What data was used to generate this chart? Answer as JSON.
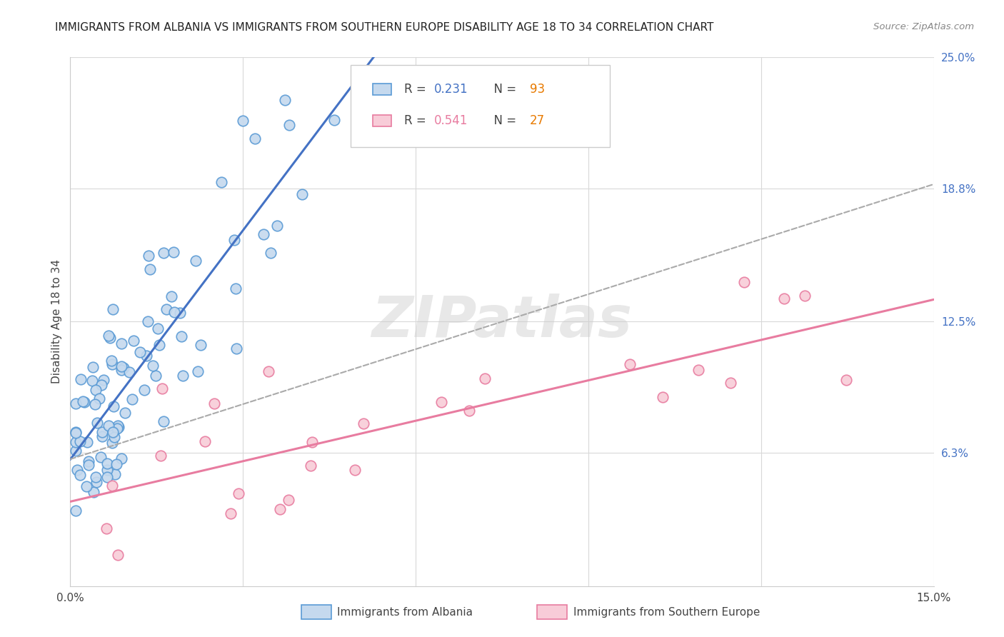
{
  "title": "IMMIGRANTS FROM ALBANIA VS IMMIGRANTS FROM SOUTHERN EUROPE DISABILITY AGE 18 TO 34 CORRELATION CHART",
  "source": "Source: ZipAtlas.com",
  "ylabel_label": "Disability Age 18 to 34",
  "xlim": [
    0.0,
    0.15
  ],
  "ylim": [
    0.0,
    0.25
  ],
  "x_tick_labels": [
    "0.0%",
    "15.0%"
  ],
  "y_ticks_right": [
    0.063,
    0.125,
    0.188,
    0.25
  ],
  "y_tick_labels_right": [
    "6.3%",
    "12.5%",
    "18.8%",
    "25.0%"
  ],
  "albania_color": "#c5d9ee",
  "albania_edge_color": "#5b9bd5",
  "southern_europe_color": "#f8ccd8",
  "southern_europe_edge_color": "#e87ca0",
  "legend_r_albania": "0.231",
  "legend_n_albania": "93",
  "legend_r_southern": "0.541",
  "legend_n_southern": "27",
  "trendline_albania_color": "#4472c4",
  "trendline_southern_color": "#e87ca0",
  "trendline_dashed_color": "#aaaaaa",
  "watermark": "ZIPatlas",
  "background_color": "#ffffff",
  "grid_color": "#d8d8d8",
  "r_color": "#4472c4",
  "n_color": "#e87a00",
  "pink_r_color": "#e87ca0"
}
